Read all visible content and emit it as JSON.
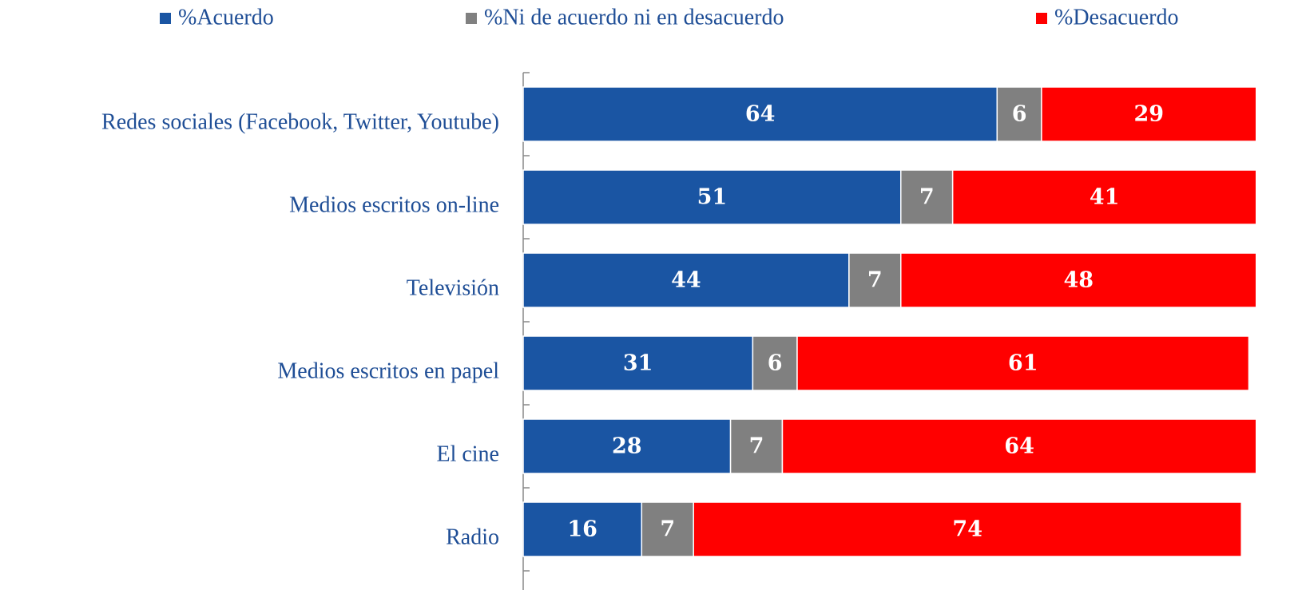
{
  "chart_data": {
    "type": "stacked_bar_horizontal",
    "categories": [
      "Redes sociales (Facebook, Twitter, Youtube)",
      "Medios escritos on-line",
      "Televisión",
      "Medios escritos en papel",
      "El cine",
      "Radio"
    ],
    "series": [
      {
        "name": "%Acuerdo",
        "color": "#1a55a3",
        "values": [
          64,
          51,
          44,
          31,
          28,
          16
        ]
      },
      {
        "name": "%Ni de acuerdo ni en desacuerdo",
        "color": "#808080",
        "values": [
          6,
          7,
          7,
          6,
          7,
          7
        ]
      },
      {
        "name": "%Desacuerdo",
        "color": "#ff0000",
        "values": [
          29,
          41,
          48,
          61,
          64,
          74
        ]
      }
    ],
    "xlim": [
      0,
      100
    ],
    "legend": "top"
  }
}
